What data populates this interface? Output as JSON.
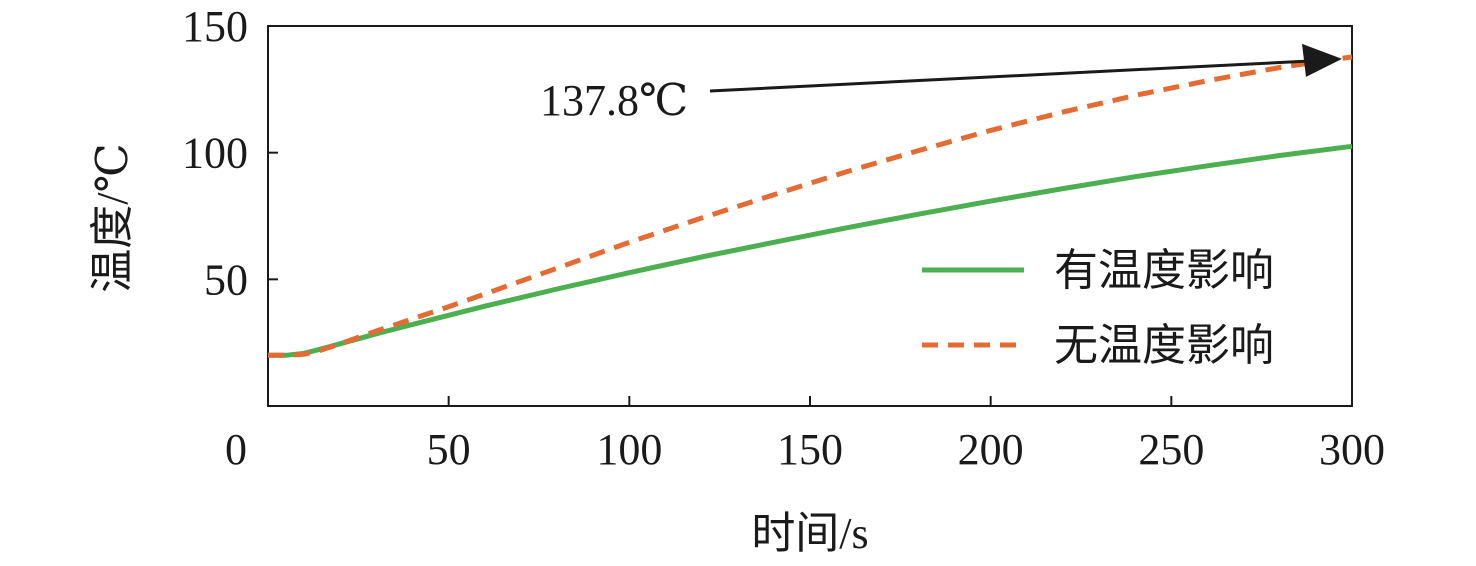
{
  "chart_data": {
    "type": "line",
    "xlabel": "时间/s",
    "ylabel": "温度/℃",
    "xlim": [
      0,
      300
    ],
    "ylim": [
      0,
      150
    ],
    "xticks": [
      0,
      50,
      100,
      150,
      200,
      250,
      300
    ],
    "yticks": [
      50,
      100,
      150
    ],
    "grid": false,
    "legend_position": "right",
    "series": [
      {
        "name": "有温度影响",
        "color": "#4caf50",
        "style": "solid",
        "x": [
          0,
          5,
          10,
          15,
          20,
          30,
          40,
          50,
          60,
          80,
          100,
          120,
          140,
          160,
          180,
          200,
          220,
          240,
          260,
          280,
          300
        ],
        "y": [
          20,
          20,
          20.8,
          22.6,
          24.6,
          28.5,
          32.2,
          35.8,
          39.4,
          46.2,
          52.6,
          58.8,
          64.6,
          70.3,
          75.7,
          80.9,
          85.8,
          90.5,
          94.8,
          98.9,
          102.5
        ]
      },
      {
        "name": "无温度影响",
        "color": "#e46b33",
        "style": "dashed",
        "x": [
          0,
          5,
          10,
          15,
          20,
          30,
          40,
          50,
          60,
          80,
          100,
          120,
          140,
          160,
          180,
          200,
          220,
          240,
          260,
          280,
          300
        ],
        "y": [
          20,
          20,
          20.4,
          22.2,
          24.6,
          29.6,
          34.4,
          39.2,
          44.2,
          54.4,
          64.6,
          74.2,
          83.4,
          92.4,
          100.8,
          108.8,
          116.0,
          122.6,
          128.4,
          133.6,
          137.8
        ]
      }
    ],
    "annotations": [
      {
        "text": "137.8℃",
        "target_x": 300,
        "target_y": 137.8
      }
    ]
  }
}
